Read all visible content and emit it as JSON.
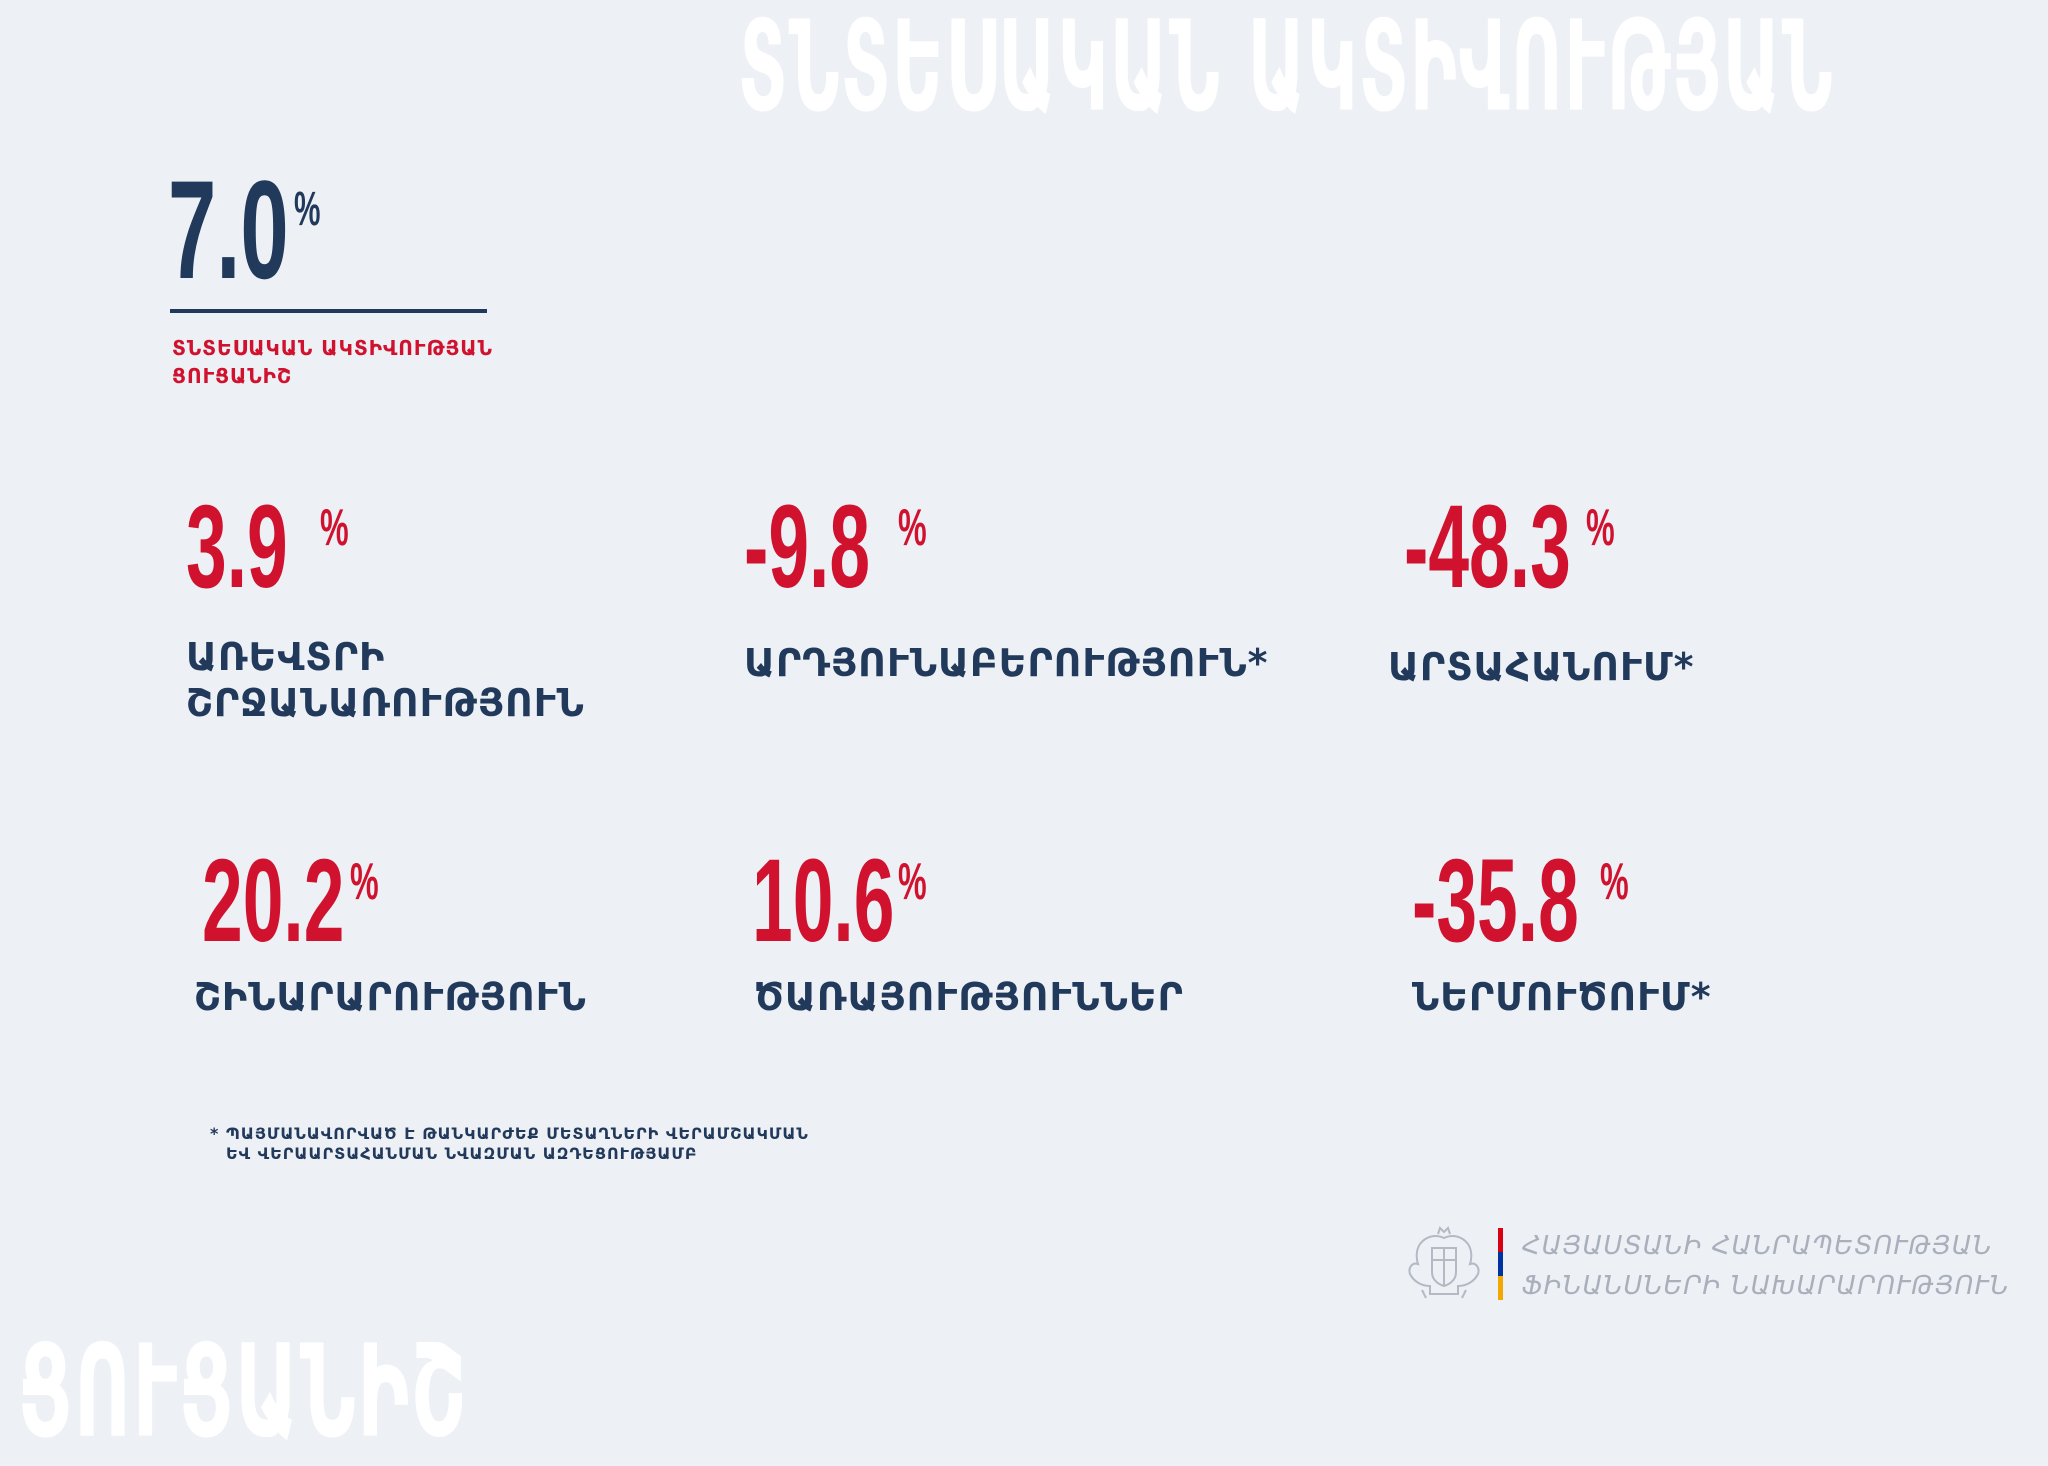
{
  "watermark": {
    "top": "ՏՆՏԵՍԱԿԱՆ ԱԿՏԻՎՈՒԹՅԱՆ",
    "bottom": "ՑՈՒՑԱՆԻՇ"
  },
  "headline": {
    "value": "7.0",
    "unit": "%",
    "caption": "ՏՆՏԵՍԱԿԱՆ ԱԿՏԻՎՈՒԹՅԱՆ ՑՈՒՑԱՆԻՇ"
  },
  "stats": [
    {
      "value": "3.9",
      "unit": "%",
      "label_line1": "ԱՌԵՎՏՐԻ",
      "label_line2": "ՇՐՋԱՆԱՌՈՒԹՅՈՒՆ"
    },
    {
      "value": "-9.8",
      "unit": "%",
      "label_line1": "ԱՐԴՅՈՒՆԱԲԵՐՈՒԹՅՈՒՆ*",
      "label_line2": ""
    },
    {
      "value": "-48.3",
      "unit": "%",
      "label_line1": "ԱՐՏԱՀԱՆՈՒՄ*",
      "label_line2": ""
    },
    {
      "value": "20.2",
      "unit": "%",
      "label_line1": "ՇԻՆԱՐԱՐՈՒԹՅՈՒՆ",
      "label_line2": ""
    },
    {
      "value": "10.6",
      "unit": "%",
      "label_line1": "ԾԱՌԱՅՈՒԹՅՈՒՆՆԵՐ",
      "label_line2": ""
    },
    {
      "value": "-35.8",
      "unit": "%",
      "label_line1": "ՆԵՐՄՈՒԾՈՒՄ*",
      "label_line2": ""
    }
  ],
  "footnote": {
    "line1": "* ՊԱՅՄԱՆԱՎՈՐՎԱԾ Է ԹԱՆԿԱՐԺԵՔ ՄԵՏԱՂՆԵՐԻ ՎԵՐԱՄՇԱԿՄԱՆ",
    "line2": "ԵՎ ՎԵՐԱԱՐՏԱՀԱՆՄԱՆ ՆՎԱԶՄԱՆ ԱԶԴԵՑՈՒԹՅԱՄԲ"
  },
  "ministry": {
    "line1": "ՀԱՅԱՍՏԱՆԻ ՀԱՆՐԱՊԵՏՈՒԹՅԱՆ",
    "line2": "ՖԻՆԱՆՍՆԵՐԻ ՆԱԽԱՐԱՐՈՒԹՅՈՒՆ",
    "emblem_icon": "coat-of-arms-icon",
    "flag_colors": [
      "#d90012",
      "#0033a0",
      "#f2a800"
    ]
  },
  "colors": {
    "background": "#edf0f5",
    "navy": "#21395a",
    "red": "#d0122f",
    "watermark": "#ffffff"
  }
}
